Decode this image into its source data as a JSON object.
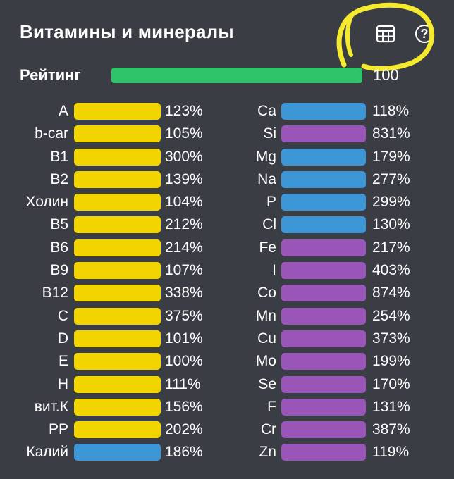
{
  "header": {
    "title": "Витамины и минералы",
    "help_glyph": "?",
    "table_icon": "table-icon",
    "help_icon": "help-icon"
  },
  "rating": {
    "label": "Рейтинг",
    "value": "100",
    "fraction": 1.0,
    "color": "#2fc36a"
  },
  "colors": {
    "yellow": "#f2d400",
    "blue": "#3d97d6",
    "purple": "#9a55b8",
    "annotation": "#f6ea2e"
  },
  "vitamins": [
    {
      "name": "A",
      "pct": "123%",
      "color": "yellow"
    },
    {
      "name": "b-car",
      "pct": "105%",
      "color": "yellow"
    },
    {
      "name": "B1",
      "pct": "300%",
      "color": "yellow"
    },
    {
      "name": "B2",
      "pct": "139%",
      "color": "yellow"
    },
    {
      "name": "Холин",
      "pct": "104%",
      "color": "yellow"
    },
    {
      "name": "B5",
      "pct": "212%",
      "color": "yellow"
    },
    {
      "name": "B6",
      "pct": "214%",
      "color": "yellow"
    },
    {
      "name": "B9",
      "pct": "107%",
      "color": "yellow"
    },
    {
      "name": "B12",
      "pct": "338%",
      "color": "yellow"
    },
    {
      "name": "C",
      "pct": "375%",
      "color": "yellow"
    },
    {
      "name": "D",
      "pct": "101%",
      "color": "yellow"
    },
    {
      "name": "E",
      "pct": "100%",
      "color": "yellow"
    },
    {
      "name": "H",
      "pct": "111%",
      "color": "yellow"
    },
    {
      "name": "вит.К",
      "pct": "156%",
      "color": "yellow"
    },
    {
      "name": "PP",
      "pct": "202%",
      "color": "yellow"
    },
    {
      "name": "Калий",
      "pct": "186%",
      "color": "blue"
    }
  ],
  "minerals": [
    {
      "name": "Ca",
      "pct": "118%",
      "color": "blue"
    },
    {
      "name": "Si",
      "pct": "831%",
      "color": "purple"
    },
    {
      "name": "Mg",
      "pct": "179%",
      "color": "blue"
    },
    {
      "name": "Na",
      "pct": "277%",
      "color": "blue"
    },
    {
      "name": "P",
      "pct": "299%",
      "color": "blue"
    },
    {
      "name": "Cl",
      "pct": "130%",
      "color": "blue"
    },
    {
      "name": "Fe",
      "pct": "217%",
      "color": "purple"
    },
    {
      "name": "I",
      "pct": "403%",
      "color": "purple"
    },
    {
      "name": "Co",
      "pct": "874%",
      "color": "purple"
    },
    {
      "name": "Mn",
      "pct": "254%",
      "color": "purple"
    },
    {
      "name": "Cu",
      "pct": "373%",
      "color": "purple"
    },
    {
      "name": "Mo",
      "pct": "199%",
      "color": "purple"
    },
    {
      "name": "Se",
      "pct": "170%",
      "color": "purple"
    },
    {
      "name": "F",
      "pct": "131%",
      "color": "purple"
    },
    {
      "name": "Cr",
      "pct": "387%",
      "color": "purple"
    },
    {
      "name": "Zn",
      "pct": "119%",
      "color": "purple"
    }
  ]
}
